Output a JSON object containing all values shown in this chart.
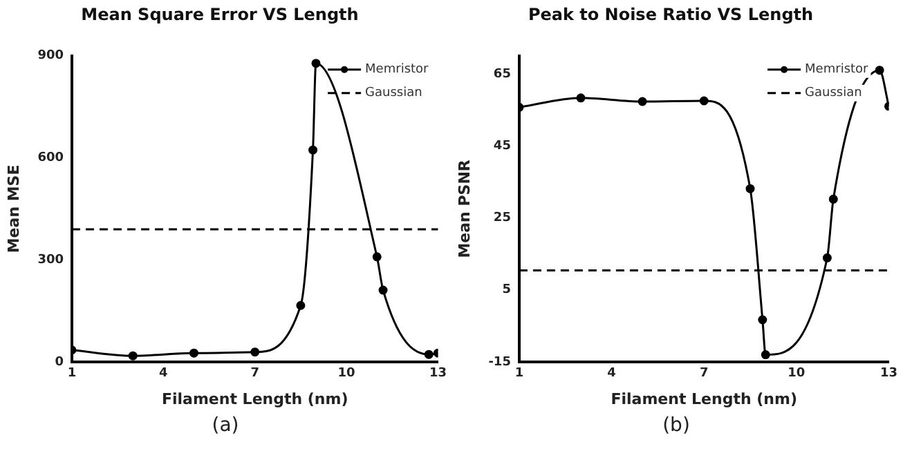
{
  "chart_data": [
    {
      "type": "line",
      "title": "Mean Square Error VS Length",
      "xlabel": "Filament Length (nm)",
      "ylabel": "Mean MSE",
      "x": [
        1,
        3,
        5,
        7,
        8.5,
        8.9,
        9,
        11,
        11.2,
        12.7,
        13
      ],
      "series": [
        {
          "name": "Memristor",
          "color": "#000000",
          "values": [
            35,
            18,
            26,
            29,
            166,
            623,
            878,
            309,
            211,
            22,
            26
          ]
        }
      ],
      "xlim": [
        1,
        13
      ],
      "xticks": [
        1,
        4,
        7,
        10,
        13
      ],
      "ylim": [
        0,
        900
      ],
      "yticks": [
        0,
        300,
        600,
        900
      ],
      "grid": false,
      "legend": "top right",
      "marker": "circle",
      "line_style": "solid",
      "ref_lines": [
        {
          "axis": "y",
          "value": 390,
          "label": "Gaussian",
          "color": "#000000",
          "line_style": "dashed"
        }
      ],
      "annotations": [
        "(a)"
      ]
    },
    {
      "type": "line",
      "title": "Peak to Noise Ratio VS Length",
      "xlabel": "Filament Length (nm)",
      "ylabel": "Mean PSNR",
      "x": [
        1,
        3,
        5,
        7,
        8.5,
        8.9,
        9,
        11,
        11.2,
        12.7,
        13
      ],
      "series": [
        {
          "name": "Memristor",
          "color": "#000000",
          "values": [
            55.7,
            58.3,
            57.3,
            57.5,
            33.1,
            -3.3,
            -13,
            13.9,
            30.2,
            66,
            56
          ]
        }
      ],
      "xlim": [
        1,
        13
      ],
      "xticks": [
        1,
        4,
        7,
        10,
        13
      ],
      "ylim": [
        -15,
        70
      ],
      "yticks": [
        -15,
        5,
        25,
        45,
        65
      ],
      "grid": false,
      "legend": "top right",
      "marker": "circle",
      "line_style": "solid",
      "ref_lines": [
        {
          "axis": "y",
          "value": 10.4,
          "label": "Gaussian",
          "color": "#000000",
          "line_style": "dashed"
        }
      ],
      "annotations": [
        "(b)"
      ]
    }
  ]
}
